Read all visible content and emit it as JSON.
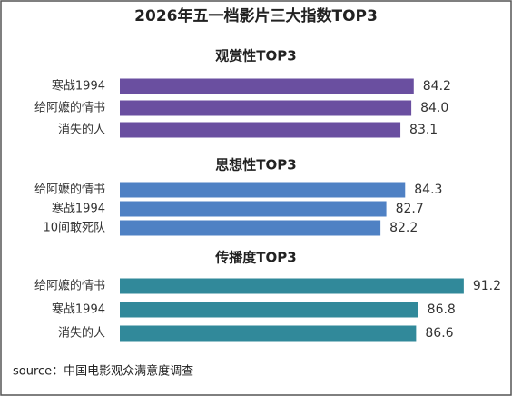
{
  "title": "2026年五一档影片三大指数TOP3",
  "source": "source：中国电影观众满意度调查",
  "chart_data": [
    {
      "type": "bar",
      "orientation": "horizontal",
      "title": "观赏性TOP3",
      "categories": [
        "寒战1994",
        "给阿嬷的情书",
        "消失的人"
      ],
      "values": [
        84.2,
        84.0,
        83.1
      ],
      "value_labels": [
        "84.2",
        "84.0",
        "83.1"
      ],
      "color": "#6a4fa0",
      "xlim": [
        60,
        89
      ]
    },
    {
      "type": "bar",
      "orientation": "horizontal",
      "title": "思想性TOP3",
      "categories": [
        "给阿嬷的情书",
        "寒战1994",
        "10间敢死队"
      ],
      "values": [
        84.3,
        82.7,
        82.2
      ],
      "value_labels": [
        "84.3",
        "82.7",
        "82.2"
      ],
      "color": "#4f81c4",
      "xlim": [
        60,
        90
      ]
    },
    {
      "type": "bar",
      "orientation": "horizontal",
      "title": "传播度TOP3",
      "categories": [
        "给阿嬷的情书",
        "寒战1994",
        "消失的人"
      ],
      "values": [
        91.2,
        86.8,
        86.6
      ],
      "value_labels": [
        "91.2",
        "86.8",
        "86.6"
      ],
      "color": "#31899a",
      "xlim": [
        58,
        92
      ]
    }
  ]
}
